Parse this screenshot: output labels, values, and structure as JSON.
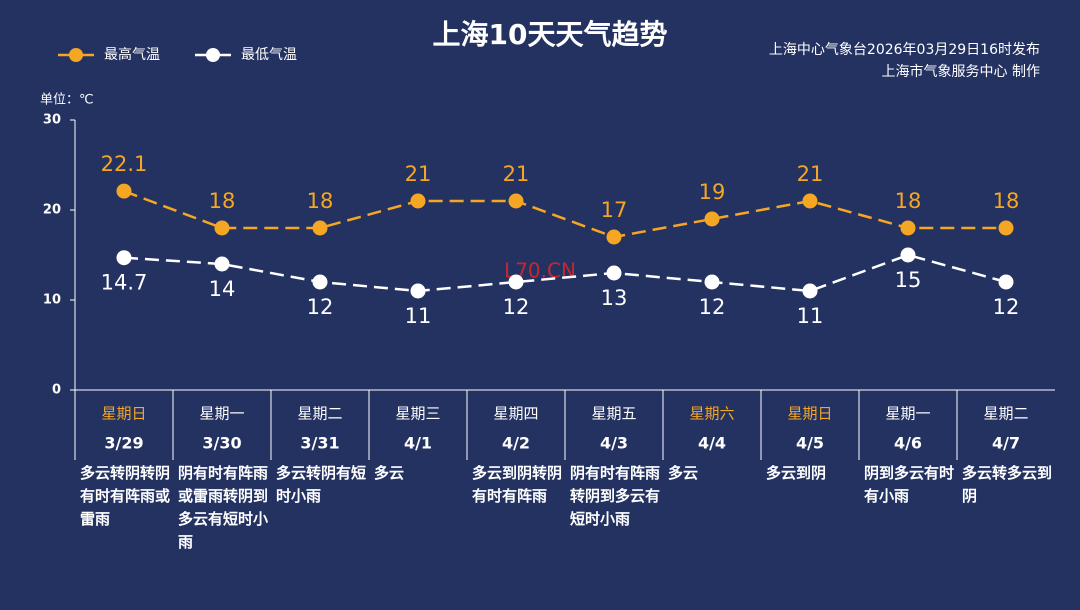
{
  "chart_data": {
    "type": "line",
    "title": "上海10天天气趋势",
    "source_lines": [
      "上海中心气象台2026年03月29日16时发布",
      "上海市气象服务中心 制作"
    ],
    "y_label": "单位：℃",
    "watermark": "L70.CN",
    "categories": [
      "3/29",
      "3/30",
      "3/31",
      "4/1",
      "4/2",
      "4/3",
      "4/4",
      "4/5",
      "4/6",
      "4/7"
    ],
    "weekdays": [
      "星期日",
      "星期一",
      "星期二",
      "星期三",
      "星期四",
      "星期五",
      "星期六",
      "星期日",
      "星期一",
      "星期二"
    ],
    "weekday_colors": [
      "#f5a623",
      "#ffffff",
      "#ffffff",
      "#ffffff",
      "#ffffff",
      "#ffffff",
      "#f5a623",
      "#f5a623",
      "#ffffff",
      "#ffffff"
    ],
    "descriptions": [
      "多云转阴转阴有时有阵雨或雷雨",
      "阴有时有阵雨或雷雨转阴到多云有短时小雨",
      "多云转阴有短时小雨",
      "多云",
      "多云到阴转阴有时有阵雨",
      "阴有时有阵雨转阴到多云有短时小雨",
      "多云",
      "多云到阴",
      "阴到多云有时有小雨",
      "多云转多云到阴"
    ],
    "series": [
      {
        "name": "最高气温",
        "color": "#f5a623",
        "label_position": "above",
        "values": [
          22.1,
          18,
          18,
          21,
          21,
          17,
          19,
          21,
          18,
          18
        ]
      },
      {
        "name": "最低气温",
        "color": "#ffffff",
        "label_position": "below",
        "values": [
          14.7,
          14,
          12,
          11,
          12,
          13,
          12,
          11,
          15,
          12
        ]
      }
    ],
    "ylim": [
      0,
      30
    ],
    "yticks": [
      0,
      10,
      20,
      30
    ],
    "dashed": true
  }
}
